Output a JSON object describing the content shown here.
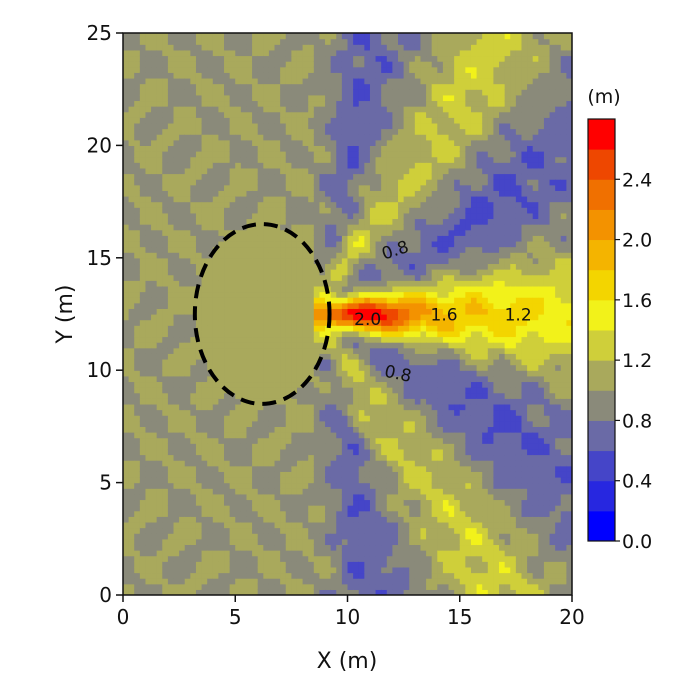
{
  "chart_data": {
    "type": "heatmap",
    "title": "",
    "xlabel": "X (m)",
    "ylabel": "Y (m)",
    "xlim": [
      0,
      20
    ],
    "ylim": [
      0,
      25
    ],
    "xticks": [
      "0",
      "5",
      "10",
      "15",
      "20"
    ],
    "yticks": [
      "0",
      "5",
      "10",
      "15",
      "20",
      "25"
    ],
    "grid": false,
    "colorbar": {
      "unit_label": "(m)",
      "range": [
        0.0,
        2.8
      ],
      "step": 0.2,
      "tick_labels": [
        "0.0",
        "0.4",
        "0.8",
        "1.2",
        "1.6",
        "2.0",
        "2.4"
      ],
      "colors": [
        "#0000ff",
        "#2727e0",
        "#4545c8",
        "#6a6aa6",
        "#8a8a7a",
        "#a9a95c",
        "#cfcf3a",
        "#f2f21a",
        "#f3d500",
        "#f4b400",
        "#f39200",
        "#f07000",
        "#ee4700",
        "#ff0000"
      ]
    },
    "shoal_ellipse": {
      "center": [
        6.2,
        12.5
      ],
      "radii": [
        3.0,
        4.0
      ],
      "style": "dashed"
    },
    "contour_labels": [
      {
        "text": "0.8",
        "x": 12.2,
        "y": 15.1
      },
      {
        "text": "2.0",
        "x": 10.9,
        "y": 12.0
      },
      {
        "text": "1.6",
        "x": 14.3,
        "y": 12.2
      },
      {
        "text": "1.2",
        "x": 17.6,
        "y": 12.2
      },
      {
        "text": "0.8",
        "x": 12.2,
        "y": 9.6
      }
    ]
  }
}
